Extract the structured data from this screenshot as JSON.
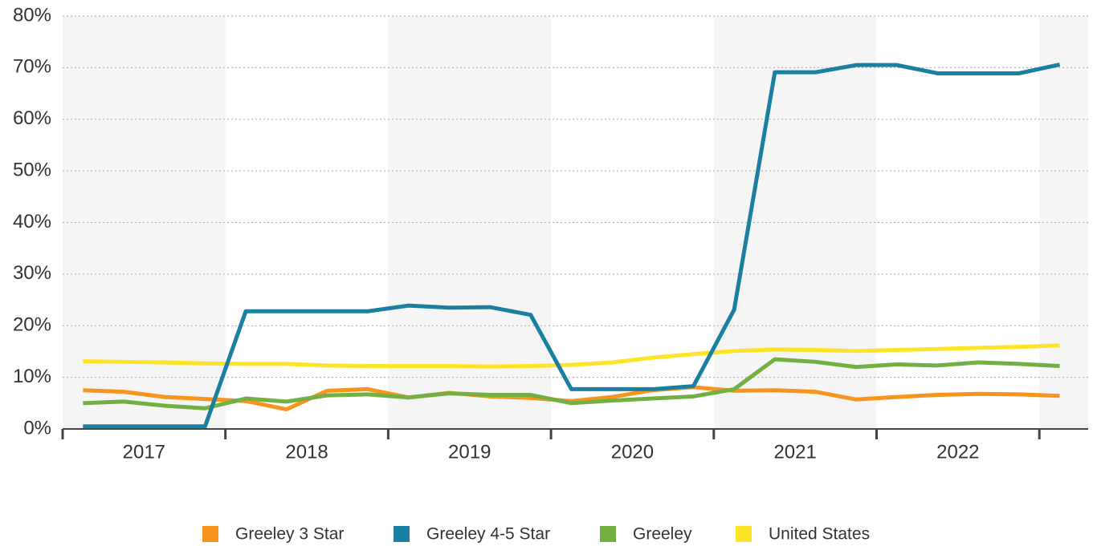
{
  "chart_data": {
    "type": "line",
    "x": [
      2017.125,
      2017.375,
      2017.625,
      2017.875,
      2018.125,
      2018.375,
      2018.625,
      2018.875,
      2019.125,
      2019.375,
      2019.625,
      2019.875,
      2020.125,
      2020.375,
      2020.625,
      2020.875,
      2021.125,
      2021.375,
      2021.625,
      2021.875,
      2022.125,
      2022.375,
      2022.625,
      2022.875,
      2023.125
    ],
    "series": [
      {
        "name": "Greeley 3 Star",
        "color": "#f7941d",
        "values": [
          7.5,
          7.2,
          6.2,
          5.8,
          5.4,
          3.8,
          7.4,
          7.7,
          6.1,
          7.0,
          6.3,
          6.0,
          5.4,
          6.2,
          7.5,
          8.1,
          7.4,
          7.5,
          7.2,
          5.7,
          6.2,
          6.6,
          6.8,
          6.7,
          6.4
        ]
      },
      {
        "name": "Greeley 4-5 Star",
        "color": "#1a7fa0",
        "values": [
          0.5,
          0.5,
          0.5,
          0.5,
          22.8,
          22.8,
          22.8,
          22.8,
          23.9,
          23.5,
          23.6,
          22.1,
          7.7,
          7.7,
          7.7,
          8.3,
          23.1,
          69.1,
          69.1,
          70.5,
          70.5,
          68.9,
          68.9,
          68.9,
          70.6
        ]
      },
      {
        "name": "Greeley",
        "color": "#72b043",
        "values": [
          5.0,
          5.3,
          4.5,
          4.0,
          5.9,
          5.3,
          6.5,
          6.7,
          6.1,
          6.9,
          6.6,
          6.6,
          5.0,
          5.5,
          5.9,
          6.3,
          7.7,
          13.5,
          13.0,
          12.0,
          12.5,
          12.3,
          12.9,
          12.6,
          12.2
        ]
      },
      {
        "name": "United States",
        "color": "#fde428",
        "values": [
          13.1,
          13.0,
          12.9,
          12.7,
          12.6,
          12.6,
          12.3,
          12.2,
          12.2,
          12.2,
          12.1,
          12.2,
          12.4,
          12.9,
          13.8,
          14.5,
          15.1,
          15.4,
          15.3,
          15.1,
          15.3,
          15.5,
          15.7,
          15.9,
          16.2
        ]
      }
    ],
    "xlim": [
      2017,
      2023.3
    ],
    "xticks": [
      2017,
      2018,
      2019,
      2020,
      2021,
      2022
    ],
    "ylim": [
      0,
      80
    ],
    "yticks": [
      {
        "value": 0,
        "label": "0%"
      },
      {
        "value": 10,
        "label": "10%"
      },
      {
        "value": 20,
        "label": "20%"
      },
      {
        "value": 30,
        "label": "30%"
      },
      {
        "value": 40,
        "label": "40%"
      },
      {
        "value": 50,
        "label": "50%"
      },
      {
        "value": 60,
        "label": "60%"
      },
      {
        "value": 70,
        "label": "70%"
      },
      {
        "value": 80,
        "label": "80%"
      }
    ],
    "grid": true,
    "legend": "bottom"
  }
}
